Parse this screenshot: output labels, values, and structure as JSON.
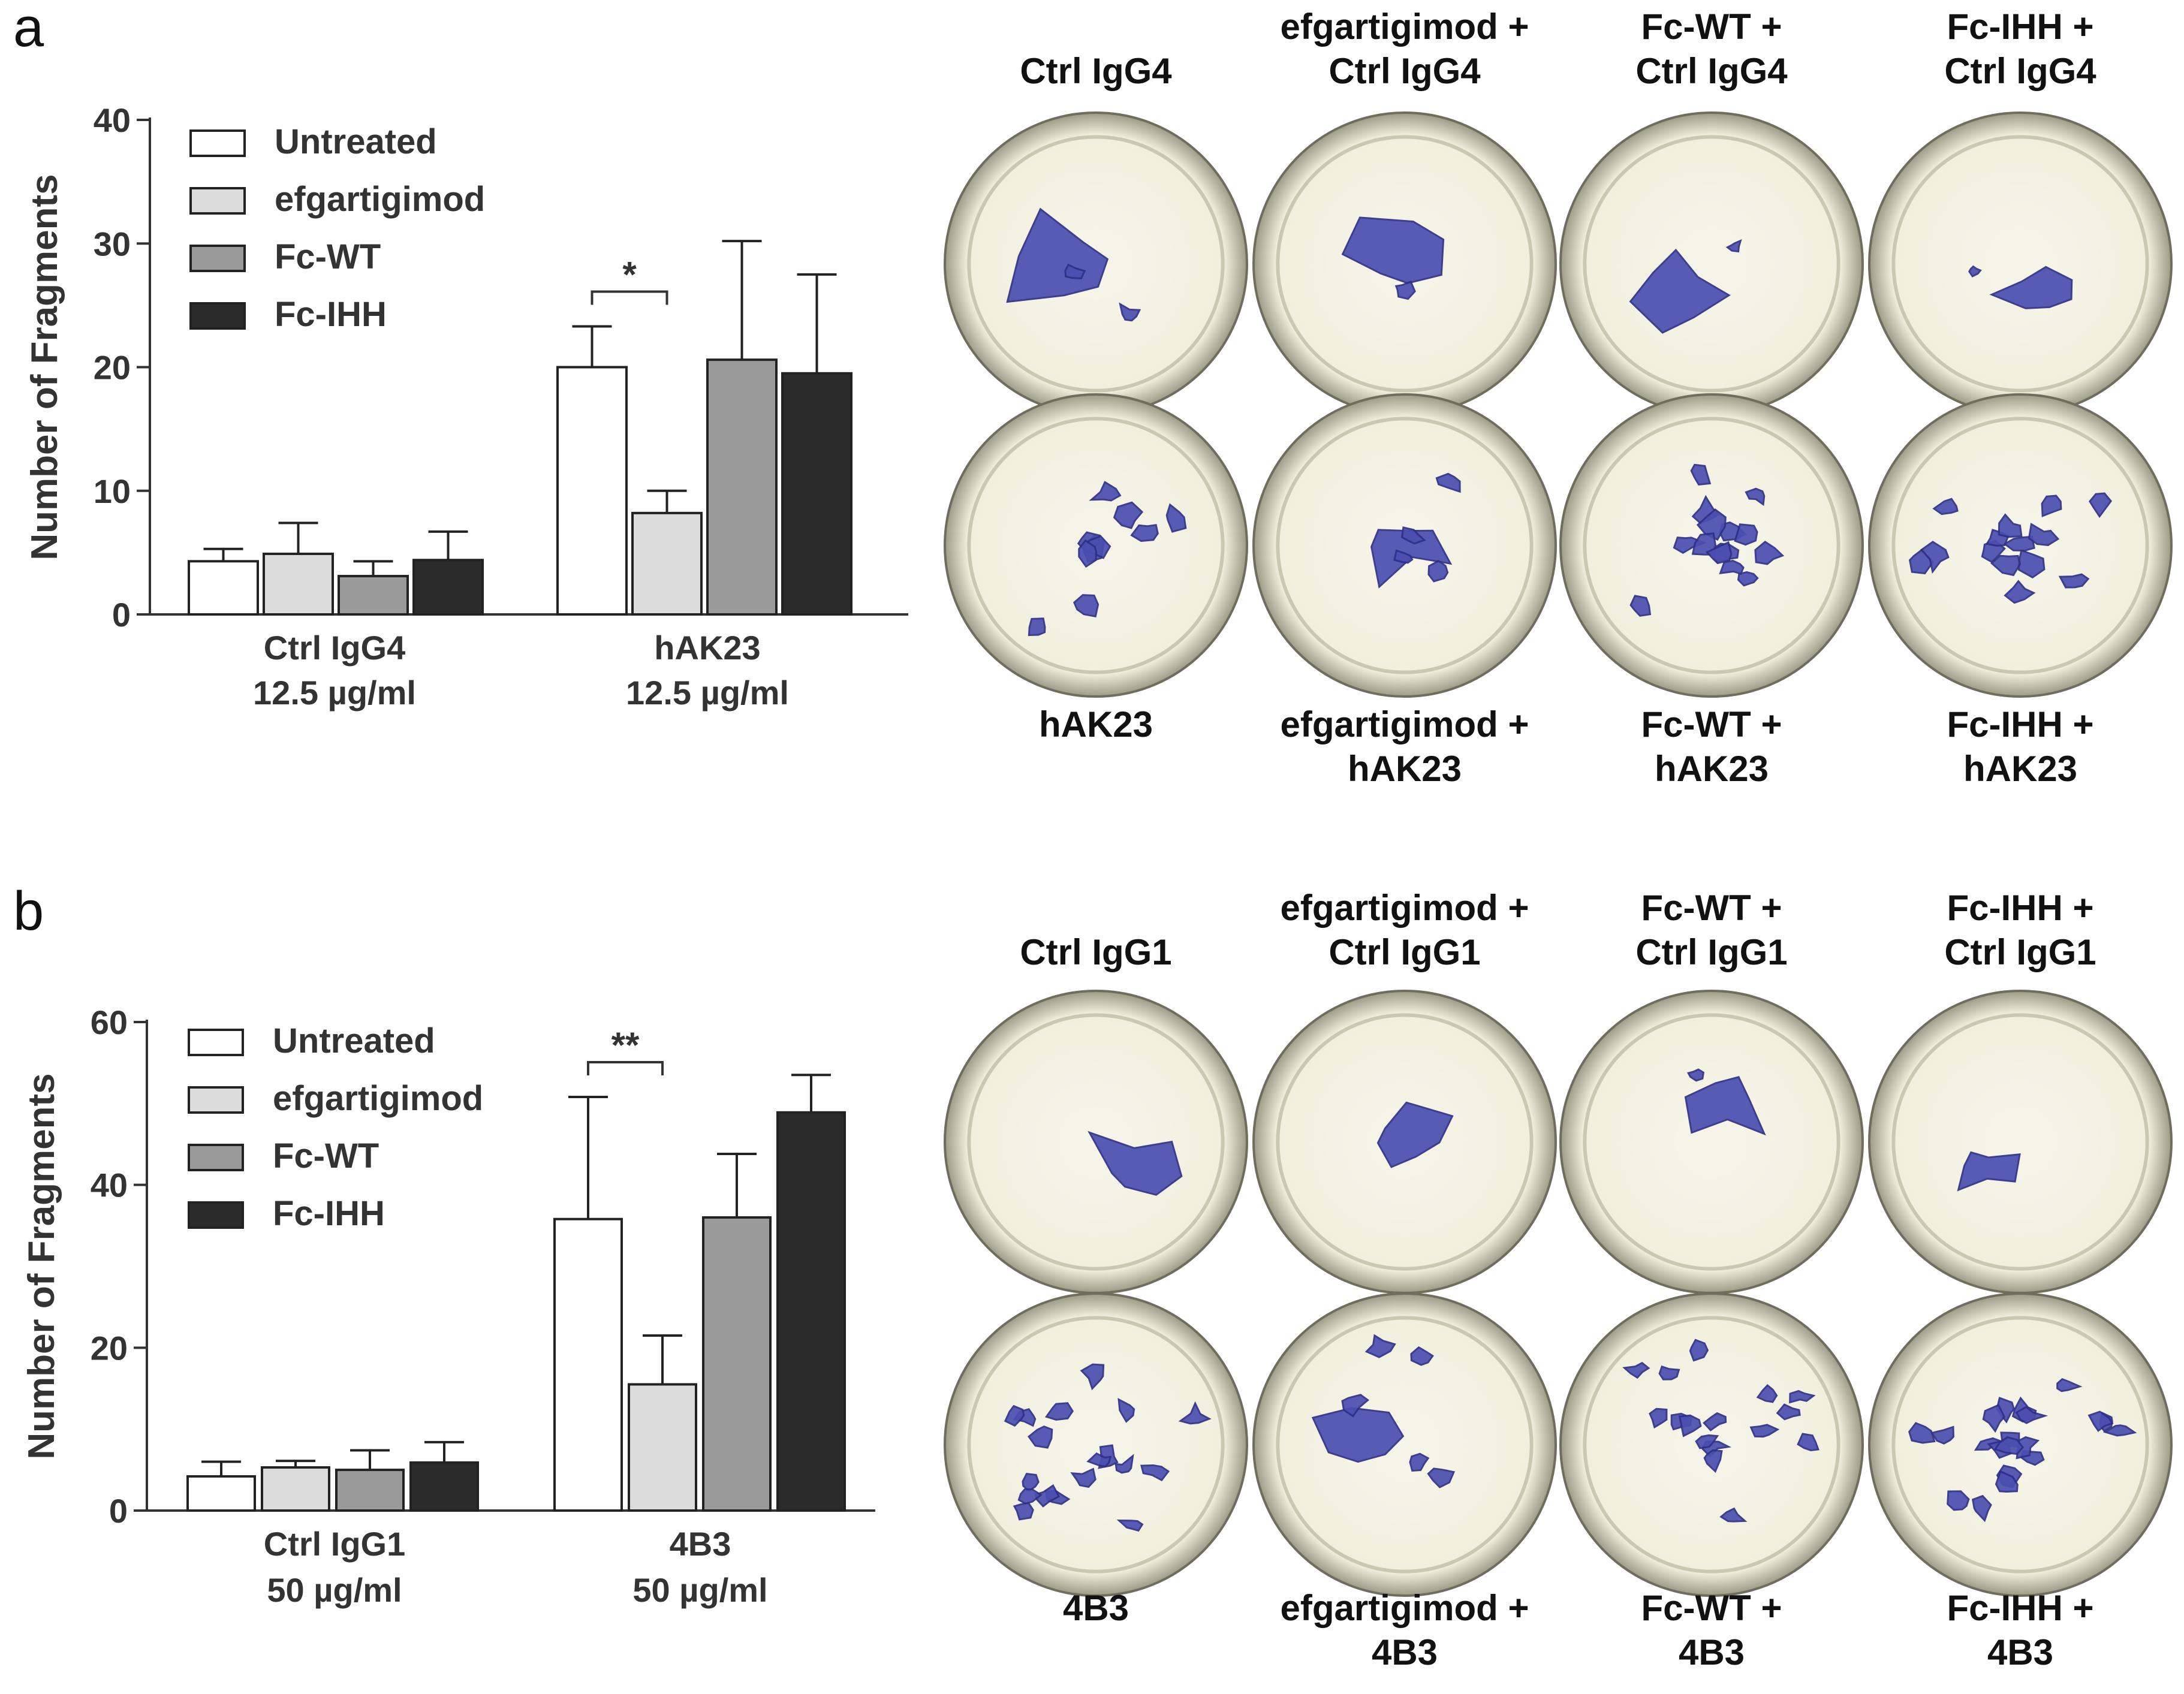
{
  "panels": [
    {
      "letter": "a",
      "chart_data": {
        "type": "bar",
        "ylabel": "Number of Fragments",
        "xlabel": "",
        "ylim": [
          0,
          40
        ],
        "yticks": [
          "0",
          "10",
          "20",
          "30",
          "40"
        ],
        "groups": [
          {
            "label_line1": "Ctrl IgG4",
            "label_line2": "12.5 µg/ml"
          },
          {
            "label_line1": "hAK23",
            "label_line2": "12.5 µg/ml"
          }
        ],
        "series": [
          {
            "name": "Untreated",
            "color": "#ffffff",
            "values": [
              4.3,
              20.0
            ],
            "errors": [
              1.0,
              3.3
            ]
          },
          {
            "name": "efgartigimod",
            "color": "#dcdcdc",
            "values": [
              4.9,
              8.2
            ],
            "errors": [
              2.5,
              1.8
            ]
          },
          {
            "name": "Fc-WT",
            "color": "#9a9a9a",
            "values": [
              3.1,
              20.6
            ],
            "errors": [
              1.2,
              9.6
            ]
          },
          {
            "name": "Fc-IHH",
            "color": "#2b2b2b",
            "values": [
              4.4,
              19.5
            ],
            "errors": [
              2.3,
              8.0
            ]
          }
        ],
        "significance": [
          {
            "group": 1,
            "from_series": 0,
            "to_series": 1,
            "label": "*"
          }
        ],
        "legend_position": "top-left"
      },
      "wells": {
        "top": [
          {
            "line1": "",
            "line2": "Ctrl IgG4"
          },
          {
            "line1": "efgartigimod +",
            "line2": "Ctrl IgG4"
          },
          {
            "line1": "Fc-WT +",
            "line2": "Ctrl IgG4"
          },
          {
            "line1": "Fc-IHH +",
            "line2": "Ctrl IgG4"
          }
        ],
        "bottom": [
          {
            "line1": "hAK23",
            "line2": ""
          },
          {
            "line1": "efgartigimod +",
            "line2": "hAK23"
          },
          {
            "line1": "Fc-WT +",
            "line2": "hAK23"
          },
          {
            "line1": "Fc-IHH +",
            "line2": "hAK23"
          }
        ]
      }
    },
    {
      "letter": "b",
      "chart_data": {
        "type": "bar",
        "ylabel": "Number of Fragments",
        "xlabel": "",
        "ylim": [
          0,
          60
        ],
        "yticks": [
          "0",
          "20",
          "40",
          "60"
        ],
        "groups": [
          {
            "label_line1": "Ctrl IgG1",
            "label_line2": "50 µg/ml"
          },
          {
            "label_line1": "4B3",
            "label_line2": "50 µg/ml"
          }
        ],
        "series": [
          {
            "name": "Untreated",
            "color": "#ffffff",
            "values": [
              4.2,
              35.8
            ],
            "errors": [
              1.8,
              15.0
            ]
          },
          {
            "name": "efgartigimod",
            "color": "#dcdcdc",
            "values": [
              5.3,
              15.5
            ],
            "errors": [
              0.8,
              6.0
            ]
          },
          {
            "name": "Fc-WT",
            "color": "#9a9a9a",
            "values": [
              5.0,
              36.0
            ],
            "errors": [
              2.4,
              7.8
            ]
          },
          {
            "name": "Fc-IHH",
            "color": "#2b2b2b",
            "values": [
              5.9,
              48.9
            ],
            "errors": [
              2.5,
              4.6
            ]
          }
        ],
        "significance": [
          {
            "group": 1,
            "from_series": 0,
            "to_series": 1,
            "label": "**"
          }
        ],
        "legend_position": "top-left"
      },
      "wells": {
        "top": [
          {
            "line1": "",
            "line2": "Ctrl IgG1"
          },
          {
            "line1": "efgartigimod +",
            "line2": "Ctrl IgG1"
          },
          {
            "line1": "Fc-WT +",
            "line2": "Ctrl IgG1"
          },
          {
            "line1": "Fc-IHH +",
            "line2": "Ctrl IgG1"
          }
        ],
        "bottom": [
          {
            "line1": "4B3",
            "line2": ""
          },
          {
            "line1": "efgartigimod +",
            "line2": "4B3"
          },
          {
            "line1": "Fc-WT +",
            "line2": "4B3"
          },
          {
            "line1": "Fc-IHH +",
            "line2": "4B3"
          }
        ]
      }
    }
  ],
  "colors": {
    "well_fill": "#f1f0de",
    "well_rim": "#c9c8b2",
    "stain": "#4b4fb0",
    "stain_dark": "#2e2f86"
  }
}
